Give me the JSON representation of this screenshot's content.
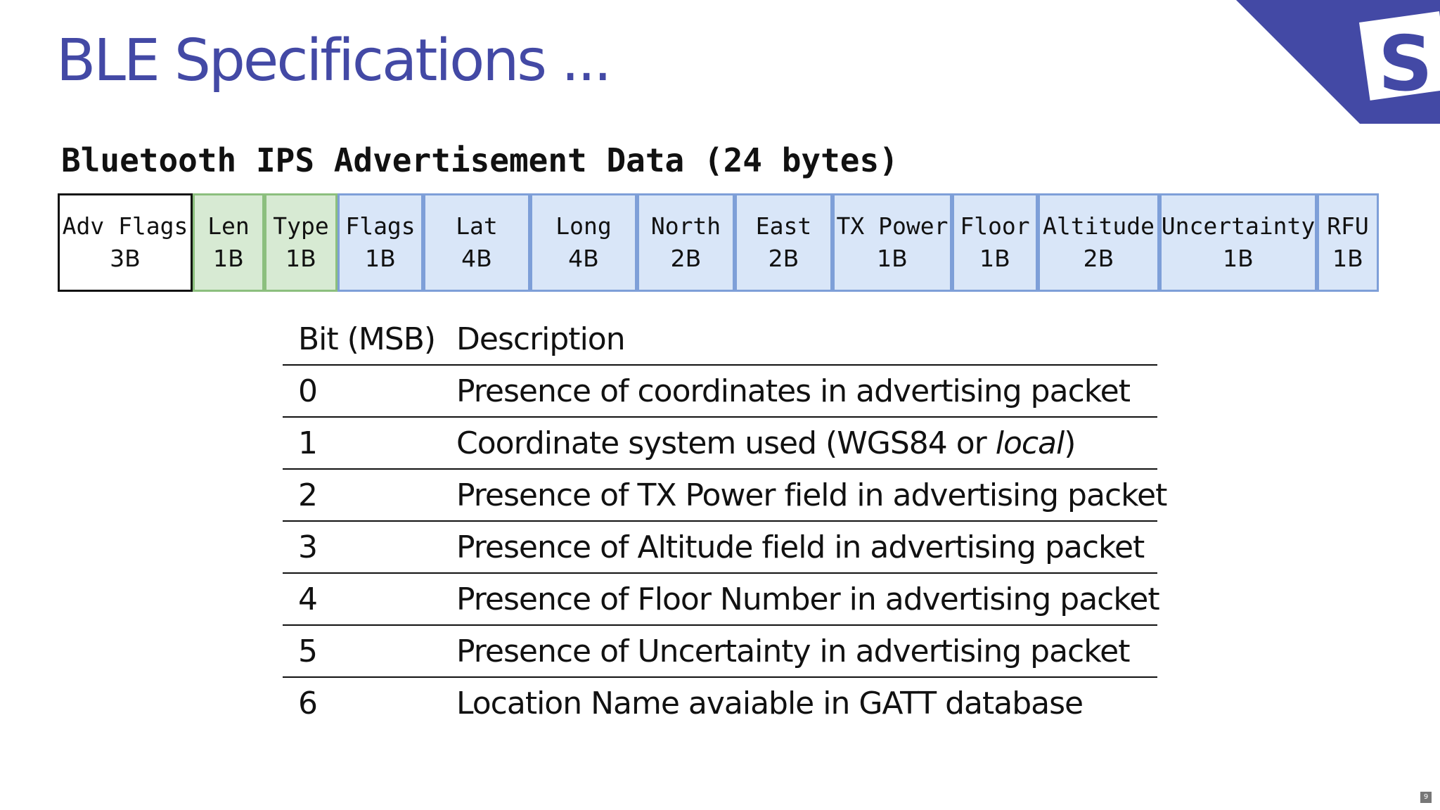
{
  "slide": {
    "title": "BLE Specifications ...",
    "subtitle": "Bluetooth IPS Advertisement Data (24 bytes)",
    "page_number": "9"
  },
  "logo": {
    "letter": "S",
    "color": "#4349a5"
  },
  "packet": {
    "fields": [
      {
        "name": "Adv Flags",
        "size": "3B",
        "color": "white"
      },
      {
        "name": "Len",
        "size": "1B",
        "color": "green"
      },
      {
        "name": "Type",
        "size": "1B",
        "color": "green"
      },
      {
        "name": "Flags",
        "size": "1B",
        "color": "blue"
      },
      {
        "name": "Lat",
        "size": "4B",
        "color": "blue"
      },
      {
        "name": "Long",
        "size": "4B",
        "color": "blue"
      },
      {
        "name": "North",
        "size": "2B",
        "color": "blue"
      },
      {
        "name": "East",
        "size": "2B",
        "color": "blue"
      },
      {
        "name": "TX Power",
        "size": "1B",
        "color": "blue"
      },
      {
        "name": "Floor",
        "size": "1B",
        "color": "blue"
      },
      {
        "name": "Altitude",
        "size": "2B",
        "color": "blue"
      },
      {
        "name": "Uncertainty",
        "size": "1B",
        "color": "blue"
      },
      {
        "name": "RFU",
        "size": "1B",
        "color": "blue"
      }
    ]
  },
  "colors": {
    "title": "#4349a5",
    "green_fill": "#d7ead3",
    "green_border": "#8cbf7e",
    "blue_fill": "#d9e6f8",
    "blue_border": "#7e9fd8"
  },
  "bit_table": {
    "headers": {
      "bit": "Bit (MSB)",
      "description": "Description"
    },
    "rows": [
      {
        "bit": "0",
        "description": "Presence of coordinates in advertising packet"
      },
      {
        "bit": "1",
        "description": "Coordinate system used (WGS84 or ",
        "description_italic": "local",
        "description_end": ")"
      },
      {
        "bit": "2",
        "description": "Presence of TX Power field in advertising packet"
      },
      {
        "bit": "3",
        "description": "Presence of Altitude field in advertising packet"
      },
      {
        "bit": "4",
        "description": "Presence of Floor Number in advertising packet"
      },
      {
        "bit": "5",
        "description": "Presence of Uncertainty in advertising packet"
      },
      {
        "bit": "6",
        "description": "Location Name avaiable in GATT database"
      }
    ]
  }
}
